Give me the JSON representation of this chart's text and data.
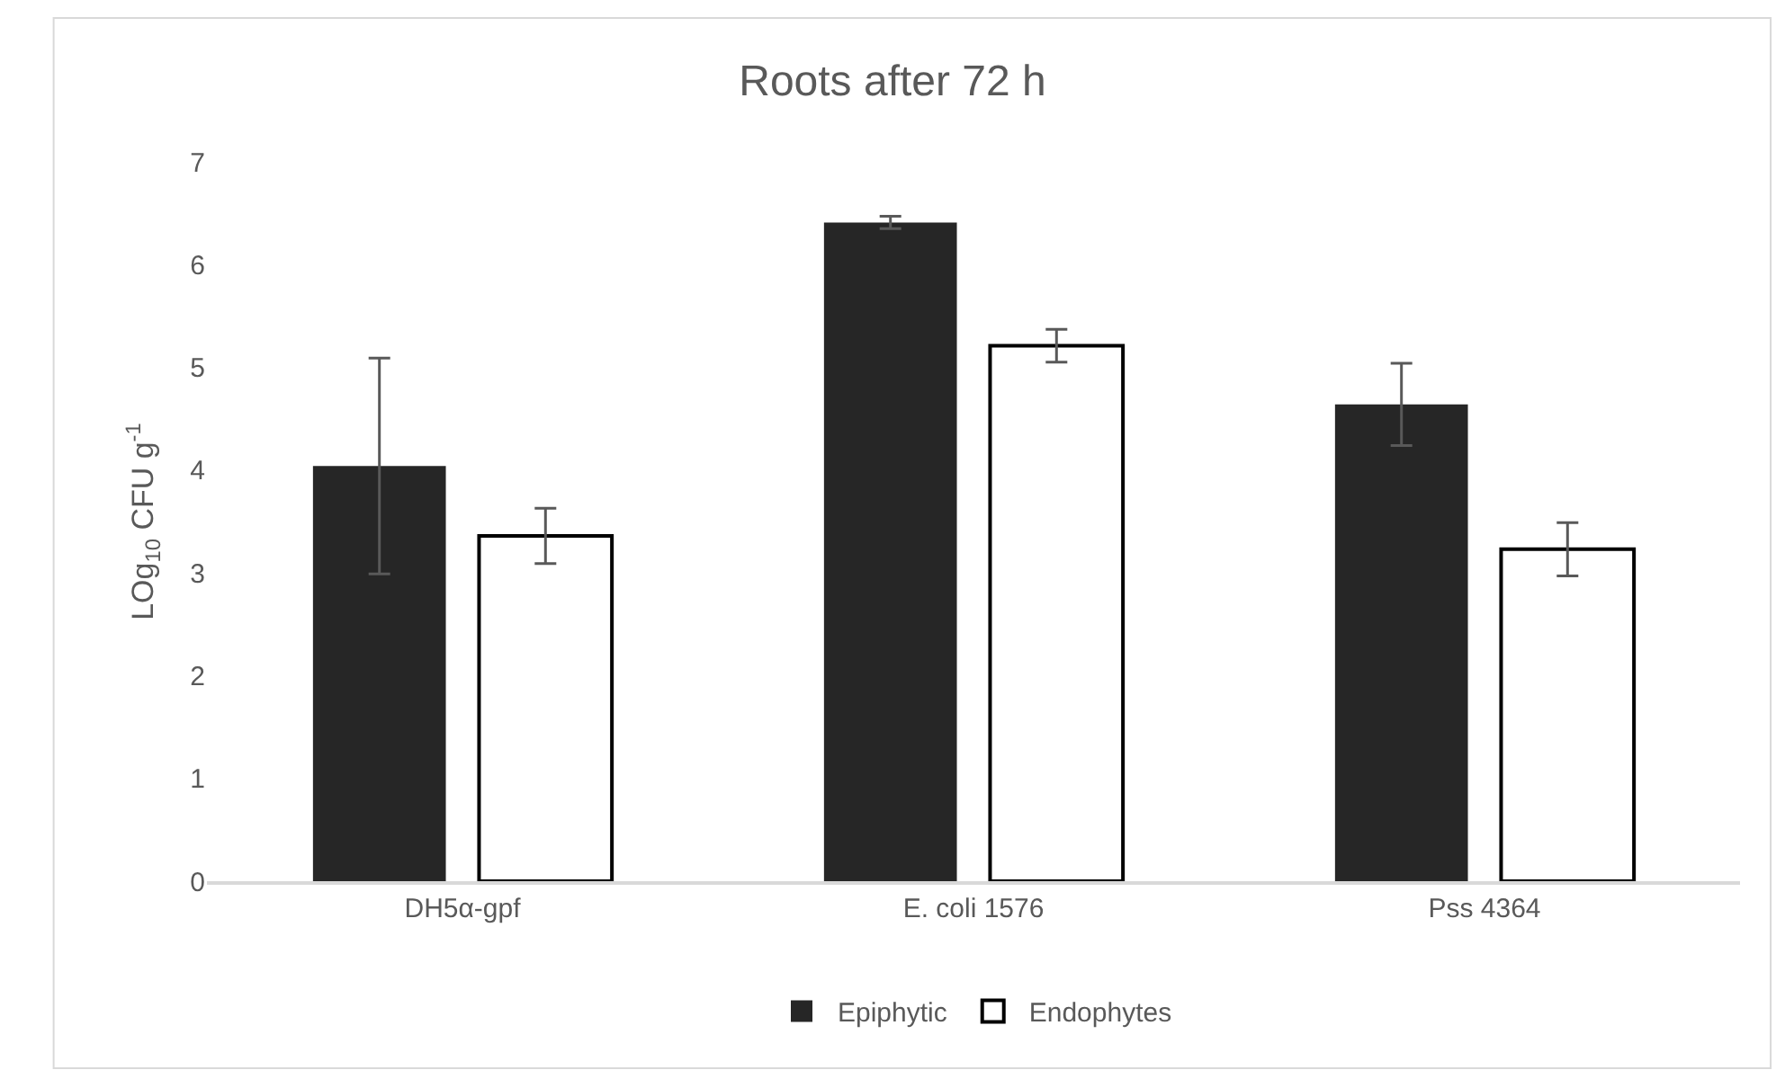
{
  "chart_data": {
    "type": "bar",
    "title": "Roots after 72 h",
    "ylabel": "LOg$_{10}$ CFU g$^{-1}$",
    "categories": [
      "DH5α-gpf",
      "E. coli 1576",
      "Pss 4364"
    ],
    "series": [
      {
        "name": "Epiphytic",
        "color": "#262626",
        "values": [
          4.04,
          6.41,
          4.64
        ],
        "errors": [
          1.05,
          0.06,
          0.4
        ]
      },
      {
        "name": "Endophytes",
        "color": "#ffffff",
        "values": [
          3.36,
          5.21,
          3.23
        ],
        "errors": [
          0.27,
          0.16,
          0.26
        ]
      }
    ],
    "ylim": [
      0,
      7
    ],
    "yticks": [
      0,
      1,
      2,
      3,
      4,
      5,
      6,
      7
    ],
    "grid": false,
    "legend": "bottom"
  }
}
